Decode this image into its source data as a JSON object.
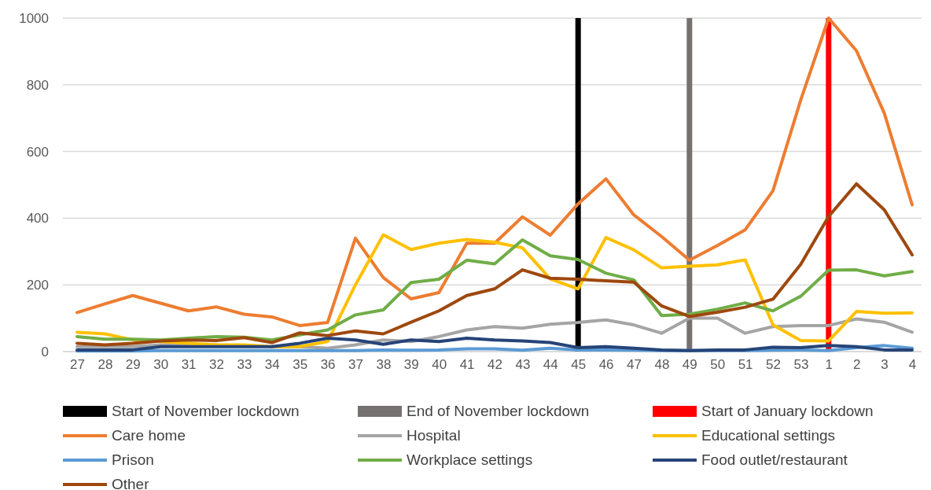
{
  "chart_data": {
    "type": "line",
    "categories": [
      "27",
      "28",
      "29",
      "30",
      "31",
      "32",
      "33",
      "34",
      "35",
      "36",
      "37",
      "38",
      "39",
      "40",
      "41",
      "42",
      "43",
      "44",
      "45",
      "46",
      "47",
      "48",
      "49",
      "50",
      "51",
      "52",
      "53",
      "1",
      "2",
      "3",
      "4"
    ],
    "ylim": [
      0,
      1000
    ],
    "yticks": [
      0,
      200,
      400,
      600,
      800,
      1000
    ],
    "grid": "y",
    "legend": "bottom",
    "marker": "none",
    "line_style": "solid",
    "ref_lines": [
      {
        "axis": "x",
        "value": "45",
        "label": "Start of November lockdown",
        "color": "#000000"
      },
      {
        "axis": "x",
        "value": "49",
        "label": "End of November lockdown",
        "color": "#767171"
      },
      {
        "axis": "x",
        "value": "1",
        "label": "Start of January lockdown",
        "color": "#ff0000"
      }
    ],
    "series": [
      {
        "name": "Care home",
        "color": "#ed7d31",
        "values": [
          117,
          143,
          168,
          145,
          122,
          134,
          112,
          104,
          78,
          87,
          340,
          222,
          158,
          177,
          325,
          325,
          404,
          349,
          443,
          518,
          410,
          345,
          274,
          318,
          365,
          482,
          755,
          1000,
          902,
          715,
          440
        ]
      },
      {
        "name": "Hospital",
        "color": "#a5a5a5",
        "values": [
          15,
          15,
          15,
          20,
          20,
          20,
          null,
          15,
          15,
          10,
          20,
          35,
          30,
          45,
          65,
          75,
          70,
          82,
          87,
          95,
          80,
          55,
          100,
          100,
          55,
          75,
          78,
          78,
          98,
          88,
          58
        ]
      },
      {
        "name": "Educational settings",
        "color": "#ffc000",
        "values": [
          58,
          53,
          35,
          30,
          25,
          20,
          20,
          15,
          15,
          30,
          200,
          350,
          306,
          325,
          336,
          328,
          311,
          218,
          188,
          342,
          305,
          251,
          256,
          260,
          275,
          80,
          33,
          32,
          120,
          115,
          116
        ]
      },
      {
        "name": "Prison",
        "color": "#5b9bd5",
        "values": [
          2,
          2,
          2,
          3,
          3,
          3,
          3,
          3,
          3,
          3,
          3,
          5,
          4,
          5,
          8,
          8,
          4,
          10,
          5,
          5,
          4,
          3,
          3,
          3,
          3,
          4,
          5,
          3,
          12,
          18,
          10
        ]
      },
      {
        "name": "Workplace settings",
        "color": "#70ad47",
        "values": [
          45,
          37,
          37,
          35,
          40,
          45,
          43,
          35,
          50,
          65,
          110,
          125,
          207,
          217,
          274,
          263,
          335,
          287,
          276,
          235,
          215,
          108,
          112,
          127,
          146,
          122,
          166,
          244,
          245,
          227,
          240
        ]
      },
      {
        "name": "Food outlet/restaurant",
        "color": "#264478",
        "values": [
          5,
          5,
          5,
          15,
          15,
          15,
          15,
          15,
          25,
          40,
          35,
          22,
          35,
          30,
          40,
          35,
          32,
          27,
          12,
          15,
          10,
          5,
          3,
          5,
          5,
          13,
          12,
          18,
          15,
          5,
          5
        ]
      },
      {
        "name": "Other",
        "color": "#9e480e",
        "values": [
          25,
          20,
          25,
          32,
          35,
          33,
          42,
          27,
          56,
          48,
          62,
          53,
          88,
          122,
          168,
          188,
          245,
          220,
          217,
          212,
          208,
          137,
          105,
          118,
          133,
          157,
          262,
          405,
          503,
          425,
          290
        ]
      }
    ]
  }
}
